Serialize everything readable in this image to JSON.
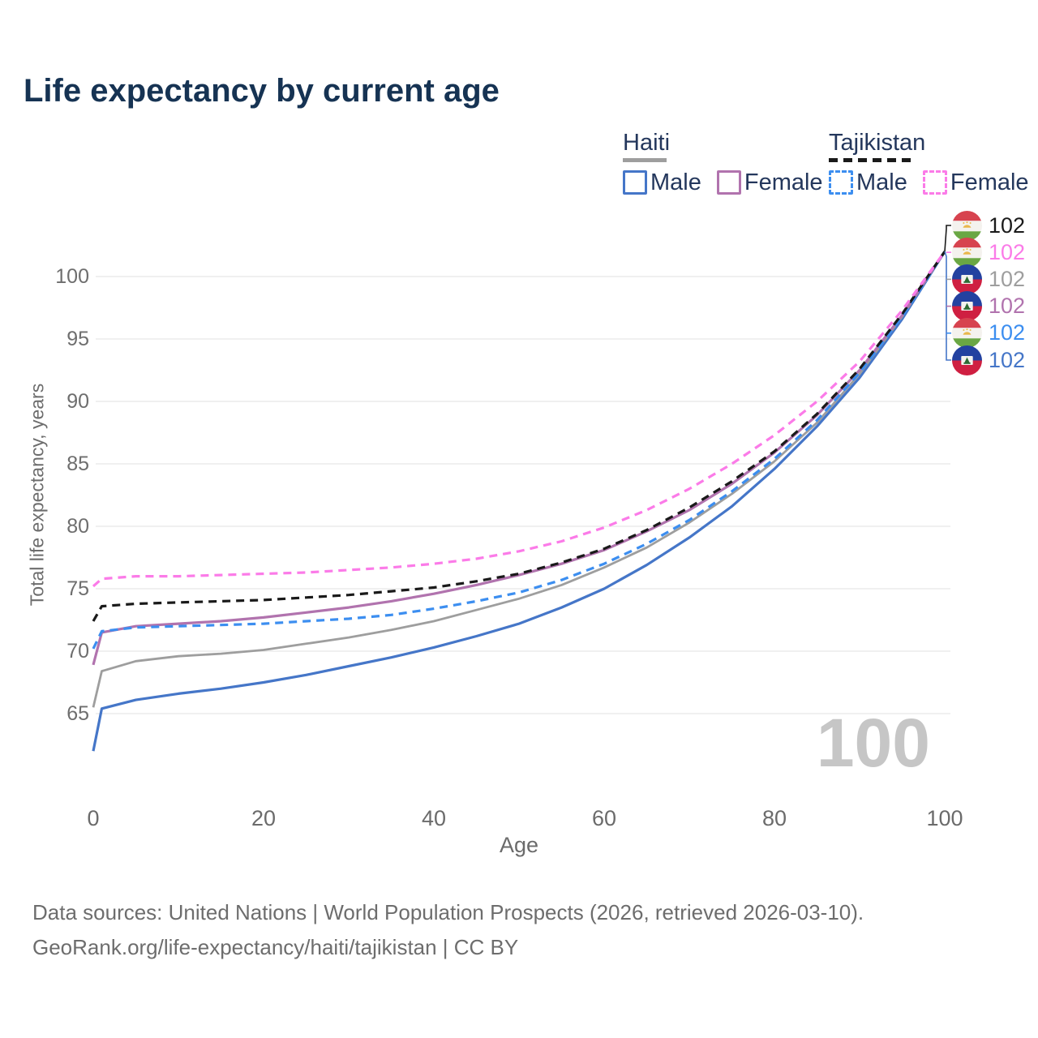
{
  "title": "Life expectancy by current age",
  "legend": {
    "groups": [
      {
        "country": "Haiti",
        "style": "solid",
        "items": [
          {
            "label": "Male"
          },
          {
            "label": "Female"
          }
        ]
      },
      {
        "country": "Tajikistan",
        "style": "dashed",
        "items": [
          {
            "label": "Male"
          },
          {
            "label": "Female"
          }
        ]
      }
    ]
  },
  "colors": {
    "haiti_male": "#4576c8",
    "haiti_female": "#b173ae",
    "haiti_total": "#9e9e9e",
    "tajikistan_male": "#3c8ef0",
    "tajikistan_female": "#fb7be8",
    "tajikistan_total": "#1a1a1a",
    "title_text": "#163353",
    "legend_text": "#24375c",
    "tick_text": "#6e6e6e",
    "gridline": "#ebebeb",
    "watermark": "#c6c6c6",
    "footer_text": "#6d6d6d"
  },
  "chart_data": {
    "type": "line",
    "title": "Life expectancy by current age",
    "xlabel": "Age",
    "ylabel": "Total life expectancy, years",
    "xlim": [
      0,
      100
    ],
    "ylim": [
      61,
      103
    ],
    "xticks": [
      0,
      20,
      40,
      60,
      80,
      100
    ],
    "yticks": [
      65,
      70,
      75,
      80,
      85,
      90,
      95,
      100
    ],
    "grid": "horizontal",
    "legend_position": "top-right",
    "watermark": "100",
    "x": [
      0,
      1,
      5,
      10,
      15,
      20,
      25,
      30,
      35,
      40,
      45,
      50,
      55,
      60,
      65,
      70,
      75,
      80,
      85,
      90,
      95,
      100
    ],
    "series": [
      {
        "name": "Haiti Male",
        "country": "Haiti",
        "sex": "male",
        "style": "solid",
        "color": "#4576c8",
        "values": [
          62.0,
          65.4,
          66.1,
          66.6,
          67.0,
          67.5,
          68.1,
          68.8,
          69.5,
          70.3,
          71.2,
          72.2,
          73.5,
          75.0,
          76.9,
          79.1,
          81.6,
          84.6,
          88.0,
          91.9,
          96.6,
          102
        ]
      },
      {
        "name": "Haiti Total",
        "country": "Haiti",
        "sex": "both",
        "style": "solid",
        "color": "#9e9e9e",
        "values": [
          65.5,
          68.4,
          69.2,
          69.6,
          69.8,
          70.1,
          70.6,
          71.1,
          71.7,
          72.4,
          73.3,
          74.2,
          75.3,
          76.7,
          78.3,
          80.3,
          82.6,
          85.2,
          88.3,
          92.2,
          96.8,
          102
        ]
      },
      {
        "name": "Haiti Female",
        "country": "Haiti",
        "sex": "female",
        "style": "solid",
        "color": "#b173ae",
        "values": [
          68.9,
          71.5,
          72.0,
          72.2,
          72.4,
          72.7,
          73.1,
          73.5,
          74.0,
          74.6,
          75.3,
          76.1,
          77.0,
          78.1,
          79.6,
          81.3,
          83.4,
          85.9,
          88.9,
          92.5,
          96.9,
          102
        ]
      },
      {
        "name": "Tajikistan Male",
        "country": "Tajikistan",
        "sex": "male",
        "style": "dashed",
        "color": "#3c8ef0",
        "values": [
          70.2,
          71.6,
          71.9,
          72.0,
          72.1,
          72.2,
          72.4,
          72.6,
          72.9,
          73.4,
          74.0,
          74.7,
          75.7,
          77.0,
          78.6,
          80.5,
          82.8,
          85.4,
          88.5,
          92.3,
          96.8,
          102
        ]
      },
      {
        "name": "Tajikistan Total",
        "country": "Tajikistan",
        "sex": "both",
        "style": "dashed",
        "color": "#1a1a1a",
        "values": [
          72.4,
          73.6,
          73.8,
          73.9,
          74.0,
          74.1,
          74.3,
          74.5,
          74.8,
          75.1,
          75.6,
          76.2,
          77.1,
          78.2,
          79.7,
          81.5,
          83.6,
          86.0,
          89.0,
          92.6,
          97.0,
          102
        ]
      },
      {
        "name": "Tajikistan Female",
        "country": "Tajikistan",
        "sex": "female",
        "style": "dashed",
        "color": "#fb7be8",
        "values": [
          75.2,
          75.8,
          76.0,
          76.0,
          76.1,
          76.2,
          76.3,
          76.5,
          76.7,
          77.0,
          77.4,
          78.0,
          78.8,
          79.9,
          81.3,
          83.0,
          85.0,
          87.3,
          90.0,
          93.2,
          97.3,
          102
        ]
      }
    ],
    "end_labels": [
      {
        "series": "Tajikistan Total",
        "value": "102",
        "flag": "tajikistan-flag-icon",
        "color": "#1a1a1a"
      },
      {
        "series": "Tajikistan Female",
        "value": "102",
        "flag": "tajikistan-flag-icon",
        "color": "#fb7be8"
      },
      {
        "series": "Haiti Total",
        "value": "102",
        "flag": "haiti-flag-icon",
        "color": "#9e9e9e"
      },
      {
        "series": "Haiti Female",
        "value": "102",
        "flag": "haiti-flag-icon",
        "color": "#b173ae"
      },
      {
        "series": "Tajikistan Male",
        "value": "102",
        "flag": "tajikistan-flag-icon",
        "color": "#3c8ef0"
      },
      {
        "series": "Haiti Male",
        "value": "102",
        "flag": "haiti-flag-icon",
        "color": "#4576c8"
      }
    ]
  },
  "footer": {
    "line1": "Data sources: United Nations | World Population Prospects (2026, retrieved 2026-03-10).",
    "line2": "GeoRank.org/life-expectancy/haiti/tajikistan | CC BY"
  }
}
